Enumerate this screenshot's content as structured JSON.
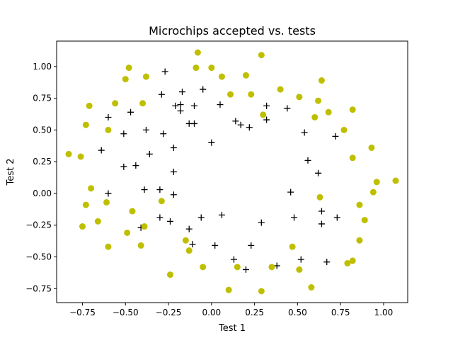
{
  "chart_data": {
    "type": "scatter",
    "title": "Microchips accepted vs. tests",
    "xlabel": "Test 1",
    "ylabel": "Test 2",
    "xlim": [
      -0.9,
      1.14
    ],
    "ylim": [
      -0.86,
      1.2
    ],
    "xticks": [
      "−0.75",
      "−0.50",
      "−0.25",
      "0.00",
      "0.25",
      "0.50",
      "0.75",
      "1.00"
    ],
    "xtick_values": [
      -0.75,
      -0.5,
      -0.25,
      0,
      0.25,
      0.5,
      0.75,
      1.0
    ],
    "yticks": [
      "−0.75",
      "−0.50",
      "−0.25",
      "0.00",
      "0.25",
      "0.50",
      "0.75",
      "1.00"
    ],
    "ytick_values": [
      -0.75,
      -0.5,
      -0.25,
      0,
      0.25,
      0.5,
      0.75,
      1.0
    ],
    "grid": false,
    "legend": "none",
    "series": [
      {
        "marker": "plus",
        "color": "#000000",
        "points": [
          [
            -0.27,
            0.96
          ],
          [
            -0.29,
            0.78
          ],
          [
            -0.17,
            0.8
          ],
          [
            -0.05,
            0.82
          ],
          [
            -0.18,
            0.7
          ],
          [
            -0.21,
            0.69
          ],
          [
            -0.1,
            0.69
          ],
          [
            -0.18,
            0.65
          ],
          [
            -0.13,
            0.55
          ],
          [
            -0.1,
            0.55
          ],
          [
            -0.47,
            0.64
          ],
          [
            -0.6,
            0.6
          ],
          [
            -0.38,
            0.5
          ],
          [
            -0.51,
            0.47
          ],
          [
            -0.28,
            0.47
          ],
          [
            -0.64,
            0.34
          ],
          [
            -0.36,
            0.31
          ],
          [
            -0.22,
            0.36
          ],
          [
            -0.51,
            0.21
          ],
          [
            -0.44,
            0.22
          ],
          [
            -0.22,
            0.17
          ],
          [
            -0.0,
            0.4
          ],
          [
            0.05,
            0.7
          ],
          [
            0.14,
            0.57
          ],
          [
            0.17,
            0.54
          ],
          [
            0.22,
            0.52
          ],
          [
            0.32,
            0.69
          ],
          [
            0.32,
            0.58
          ],
          [
            0.44,
            0.67
          ],
          [
            0.54,
            0.48
          ],
          [
            0.56,
            0.26
          ],
          [
            0.62,
            0.16
          ],
          [
            0.72,
            0.45
          ],
          [
            -0.6,
            0.0
          ],
          [
            -0.39,
            0.03
          ],
          [
            -0.3,
            0.03
          ],
          [
            -0.22,
            -0.01
          ],
          [
            -0.3,
            -0.19
          ],
          [
            -0.24,
            -0.22
          ],
          [
            -0.13,
            -0.28
          ],
          [
            -0.11,
            -0.4
          ],
          [
            -0.06,
            -0.19
          ],
          [
            0.02,
            -0.41
          ],
          [
            0.06,
            -0.17
          ],
          [
            0.13,
            -0.52
          ],
          [
            0.2,
            -0.6
          ],
          [
            0.23,
            -0.41
          ],
          [
            0.29,
            -0.23
          ],
          [
            0.38,
            -0.57
          ],
          [
            0.46,
            0.01
          ],
          [
            0.48,
            -0.19
          ],
          [
            0.52,
            -0.52
          ],
          [
            0.64,
            -0.14
          ],
          [
            0.64,
            -0.24
          ],
          [
            0.67,
            -0.54
          ],
          [
            0.73,
            -0.19
          ],
          [
            -0.41,
            -0.27
          ]
        ]
      },
      {
        "marker": "circle",
        "color": "#bfbf00",
        "points": [
          [
            -0.08,
            1.11
          ],
          [
            -0.48,
            0.99
          ],
          [
            -0.09,
            0.99
          ],
          [
            0.0,
            0.99
          ],
          [
            0.29,
            1.09
          ],
          [
            -0.5,
            0.9
          ],
          [
            -0.38,
            0.92
          ],
          [
            0.06,
            0.92
          ],
          [
            0.2,
            0.93
          ],
          [
            0.64,
            0.89
          ],
          [
            0.4,
            0.82
          ],
          [
            0.11,
            0.78
          ],
          [
            0.23,
            0.78
          ],
          [
            0.51,
            0.76
          ],
          [
            0.62,
            0.73
          ],
          [
            -0.71,
            0.69
          ],
          [
            -0.56,
            0.71
          ],
          [
            -0.4,
            0.71
          ],
          [
            0.68,
            0.64
          ],
          [
            0.82,
            0.66
          ],
          [
            0.3,
            0.62
          ],
          [
            0.6,
            0.6
          ],
          [
            -0.6,
            0.5
          ],
          [
            -0.73,
            0.54
          ],
          [
            0.77,
            0.5
          ],
          [
            -0.83,
            0.31
          ],
          [
            -0.76,
            0.29
          ],
          [
            0.93,
            0.36
          ],
          [
            0.82,
            0.28
          ],
          [
            -0.7,
            0.04
          ],
          [
            0.96,
            0.09
          ],
          [
            1.07,
            0.1
          ],
          [
            0.94,
            0.01
          ],
          [
            0.63,
            -0.03
          ],
          [
            -0.61,
            -0.07
          ],
          [
            -0.73,
            -0.09
          ],
          [
            -0.29,
            -0.06
          ],
          [
            -0.46,
            -0.14
          ],
          [
            0.86,
            -0.09
          ],
          [
            -0.66,
            -0.22
          ],
          [
            -0.75,
            -0.26
          ],
          [
            0.89,
            -0.21
          ],
          [
            -0.49,
            -0.31
          ],
          [
            -0.39,
            -0.26
          ],
          [
            -0.15,
            -0.37
          ],
          [
            0.86,
            -0.37
          ],
          [
            -0.6,
            -0.42
          ],
          [
            -0.41,
            -0.41
          ],
          [
            -0.13,
            -0.45
          ],
          [
            0.47,
            -0.42
          ],
          [
            0.82,
            -0.53
          ],
          [
            0.79,
            -0.55
          ],
          [
            0.15,
            -0.58
          ],
          [
            -0.05,
            -0.58
          ],
          [
            0.35,
            -0.58
          ],
          [
            0.51,
            -0.6
          ],
          [
            -0.24,
            -0.64
          ],
          [
            0.58,
            -0.74
          ],
          [
            0.1,
            -0.76
          ],
          [
            0.29,
            -0.77
          ]
        ]
      }
    ]
  }
}
